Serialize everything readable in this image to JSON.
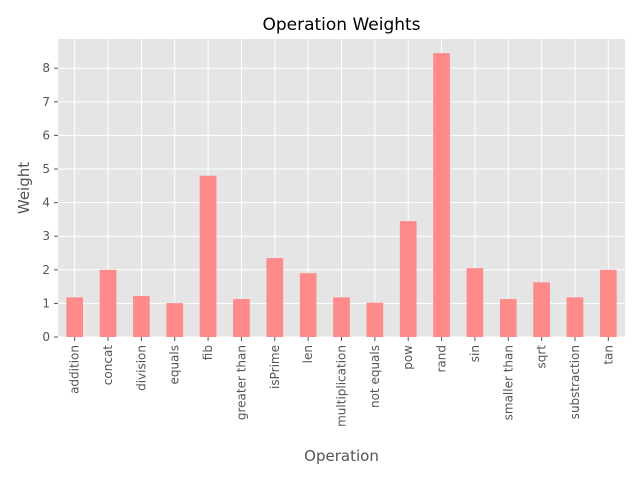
{
  "chart_data": {
    "type": "bar",
    "title": "Operation Weights",
    "xlabel": "Operation",
    "ylabel": "Weight",
    "categories": [
      "addition",
      "concat",
      "division",
      "equals",
      "fib",
      "greater than",
      "isPrime",
      "len",
      "multiplication",
      "not equals",
      "pow",
      "rand",
      "sin",
      "smaller than",
      "sqrt",
      "substraction",
      "tan"
    ],
    "values": [
      1.18,
      2.0,
      1.22,
      1.01,
      4.8,
      1.13,
      2.35,
      1.9,
      1.18,
      1.02,
      3.45,
      8.45,
      2.05,
      1.13,
      1.63,
      1.18,
      2.0
    ],
    "ylim": [
      0,
      8.87
    ],
    "yticks": [
      0,
      1,
      2,
      3,
      4,
      5,
      6,
      7,
      8
    ],
    "grid": true,
    "colors": {
      "bar": "#ff8a8a",
      "plot_background": "#e5e5e5",
      "grid": "#ffffff",
      "text": "#555555"
    }
  }
}
